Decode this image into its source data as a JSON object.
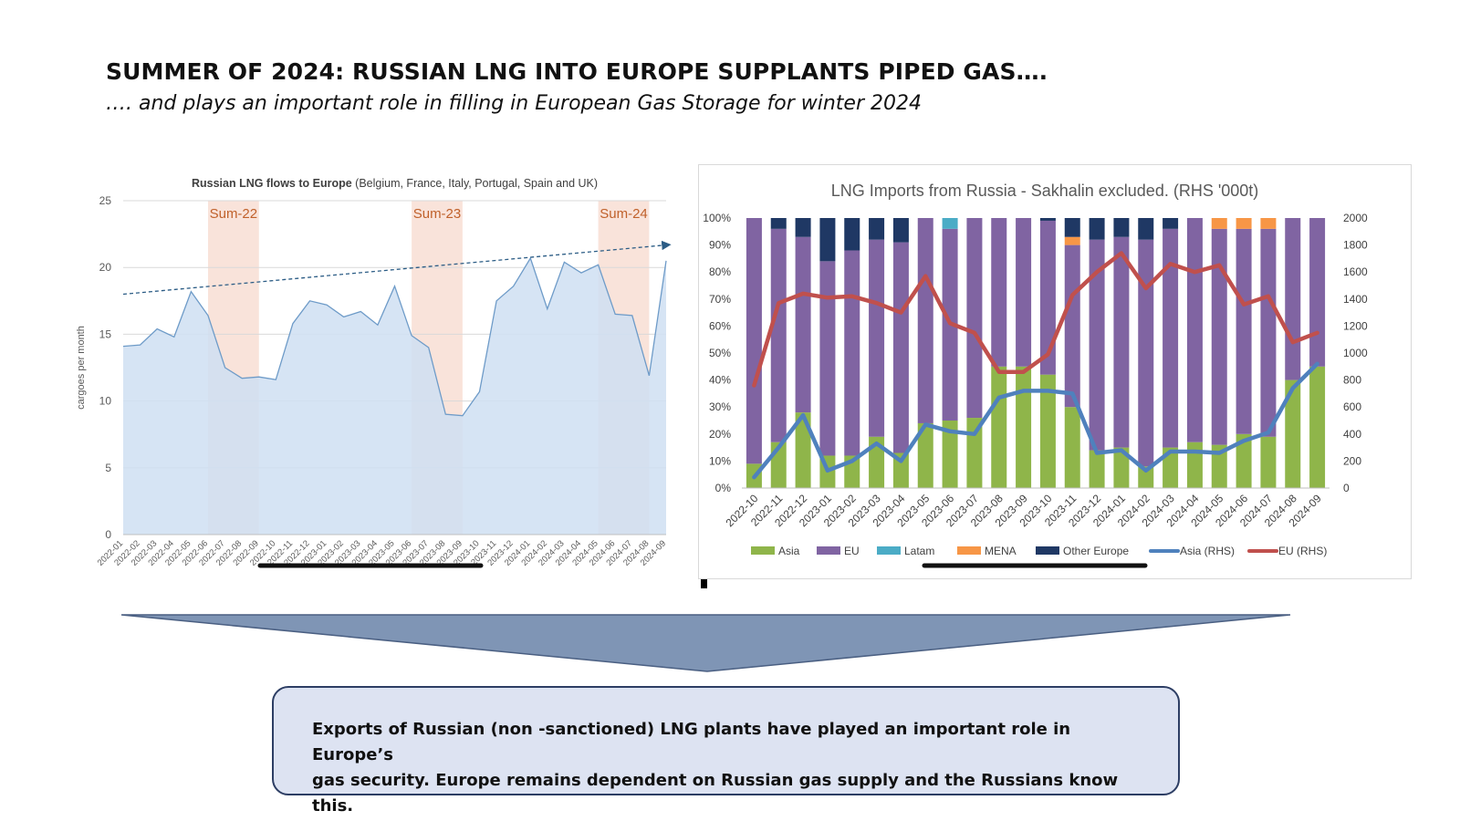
{
  "slide": {
    "title": "SUMMER OF 2024: RUSSIAN LNG INTO EUROPE SUPPLANTS PIPED GAS….",
    "subtitle": "…. and plays an important role in filling in European Gas Storage for winter 2024",
    "callout_line1": "Exports of Russian (non -sanctioned) LNG plants have played an important role in Europe’s",
    "callout_line2": "gas security. Europe remains dependent on Russian gas supply and the Russians know this."
  },
  "colors": {
    "area_fill": "#cfdff2",
    "area_line": "#6e9bc8",
    "summer_shade": "#f9e3da",
    "summer_label": "#c0612b",
    "trend": "#2b5c85",
    "asia": "#8fb54a",
    "eu": "#8064a2",
    "latam": "#4bacc6",
    "mena": "#f79646",
    "other_europe": "#1f3864",
    "asia_rhs": "#4f81bd",
    "eu_rhs": "#c0504d",
    "funnel": "#7f95b5"
  },
  "chart_data": [
    {
      "type": "area",
      "title": "Russian LNG flows to Europe",
      "title_suffix": "(Belgium, France, Italy, Portugal, Spain and UK)",
      "ylabel": "cargoes per month",
      "ylim": [
        0,
        25
      ],
      "yticks": [
        0,
        5,
        10,
        15,
        20,
        25
      ],
      "x": [
        "2022-01",
        "2022-02",
        "2022-03",
        "2022-04",
        "2022-05",
        "2022-06",
        "2022-07",
        "2022-08",
        "2022-09",
        "2022-10",
        "2022-11",
        "2022-12",
        "2023-01",
        "2023-02",
        "2023-03",
        "2023-04",
        "2023-05",
        "2023-06",
        "2023-07",
        "2023-08",
        "2023-09",
        "2023-10",
        "2023-11",
        "2023-12",
        "2024-01",
        "2024-02",
        "2024-03",
        "2024-04",
        "2024-05",
        "2024-06",
        "2024-07",
        "2024-08",
        "2024-09"
      ],
      "values": [
        14.1,
        14.2,
        15.4,
        14.8,
        18.2,
        16.4,
        12.5,
        11.7,
        11.8,
        11.6,
        15.8,
        17.5,
        17.2,
        16.3,
        16.7,
        15.7,
        18.6,
        14.9,
        14.0,
        9.0,
        8.9,
        10.7,
        17.5,
        18.6,
        20.7,
        16.9,
        20.4,
        19.6,
        20.2,
        16.5,
        16.4,
        11.9,
        20.5
      ],
      "summers": [
        {
          "label": "Sum-22",
          "start": "2022-06",
          "end": "2022-09"
        },
        {
          "label": "Sum-23",
          "start": "2023-06",
          "end": "2023-09"
        },
        {
          "label": "Sum-24",
          "start": "2024-05",
          "end": "2024-08"
        }
      ],
      "trend_line": {
        "start": 18.0,
        "end": 21.7
      },
      "grid": true
    },
    {
      "type": "bar",
      "title": "LNG Imports from Russia - Sakhalin excluded. (RHS '000t)",
      "categories": [
        "2022-10",
        "2022-11",
        "2022-12",
        "2023-01",
        "2023-02",
        "2023-03",
        "2023-04",
        "2023-05",
        "2023-06",
        "2023-07",
        "2023-08",
        "2023-09",
        "2023-10",
        "2023-11",
        "2023-12",
        "2024-01",
        "2024-02",
        "2024-03",
        "2024-04",
        "2024-05",
        "2024-06",
        "2024-07",
        "2024-08",
        "2024-09"
      ],
      "ylim": [
        0,
        100
      ],
      "yticks_left": [
        "0%",
        "10%",
        "20%",
        "30%",
        "40%",
        "50%",
        "60%",
        "70%",
        "80%",
        "90%",
        "100%"
      ],
      "ylim_right": [
        0,
        2000
      ],
      "yticks_right": [
        0,
        200,
        400,
        600,
        800,
        1000,
        1200,
        1400,
        1600,
        1800,
        2000
      ],
      "series": [
        {
          "name": "Asia",
          "values": [
            9,
            17,
            28,
            12,
            12,
            19,
            13,
            24,
            25,
            26,
            45,
            45,
            42,
            30,
            14,
            15,
            8,
            15,
            17,
            16,
            20,
            19,
            40,
            45
          ]
        },
        {
          "name": "EU",
          "values": [
            91,
            79,
            65,
            72,
            76,
            73,
            78,
            76,
            71,
            74,
            55,
            55,
            57,
            60,
            78,
            78,
            84,
            81,
            83,
            80,
            76,
            77,
            60,
            55
          ]
        },
        {
          "name": "Latam",
          "values": [
            0,
            0,
            0,
            0,
            0,
            0,
            0,
            0,
            4,
            0,
            0,
            0,
            0,
            0,
            0,
            0,
            0,
            0,
            0,
            0,
            0,
            0,
            0,
            0
          ]
        },
        {
          "name": "MENA",
          "values": [
            0,
            0,
            0,
            0,
            0,
            0,
            0,
            0,
            0,
            0,
            0,
            0,
            0,
            3,
            0,
            0,
            0,
            0,
            0,
            4,
            4,
            4,
            0,
            0
          ]
        },
        {
          "name": "Other Europe",
          "values": [
            0,
            4,
            7,
            16,
            12,
            8,
            9,
            0,
            0,
            0,
            0,
            0,
            1,
            7,
            8,
            7,
            8,
            4,
            0,
            0,
            0,
            0,
            0,
            0
          ]
        }
      ],
      "lines_rhs": [
        {
          "name": "Asia (RHS)",
          "values": [
            80,
            300,
            540,
            130,
            200,
            330,
            200,
            470,
            420,
            400,
            670,
            720,
            720,
            700,
            260,
            280,
            130,
            270,
            270,
            260,
            350,
            410,
            740,
            920
          ]
        },
        {
          "name": "EU (RHS)",
          "values": [
            760,
            1370,
            1440,
            1410,
            1420,
            1370,
            1300,
            1570,
            1220,
            1150,
            860,
            860,
            990,
            1430,
            1600,
            1740,
            1480,
            1660,
            1600,
            1650,
            1360,
            1420,
            1080,
            1150
          ]
        }
      ],
      "legend_position": "bottom",
      "grid": false
    }
  ]
}
